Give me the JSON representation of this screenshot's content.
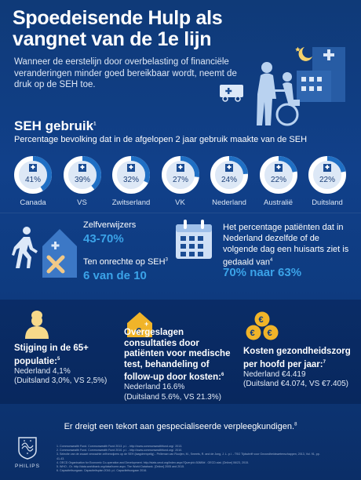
{
  "header": {
    "title": "Spoedeisende Hulp als vangnet van de 1e lijn",
    "intro": "Wanneer de eerstelijn door overbelasting of financiële veranderingen minder goed bereikbaar wordt, neemt de druk op de SEH toe."
  },
  "seh": {
    "title": "SEH gebruik",
    "sup": "1",
    "subtitle": "Percentage bevolking dat in de afgelopen 2 jaar gebruik maakte van de SEH",
    "countries": [
      {
        "name": "Canada",
        "label": "41%",
        "value": 41
      },
      {
        "name": "VS",
        "label": "39%",
        "value": 39
      },
      {
        "name": "Zwitserland",
        "label": "32%",
        "value": 32
      },
      {
        "name": "VK",
        "label": "27%",
        "value": 27
      },
      {
        "name": "Nederland",
        "label": "24%",
        "value": 24
      },
      {
        "name": "Australië",
        "label": "22%",
        "value": 22
      },
      {
        "name": "Duitsland",
        "label": "22%",
        "value": 22
      }
    ]
  },
  "stats": {
    "zelf_label": "Zelfverwijzers",
    "zelf_value": "43-70%",
    "onrechte_label": "Ten onrechte op SEH",
    "onrechte_sup": "3",
    "onrechte_value": "6 van de 10",
    "pct_text": "Het percentage patiënten dat in Nederland dezelfde of de volgende dag een huisarts ziet is gedaald van",
    "pct_sup": "4",
    "pct_value": "70% naar 63%"
  },
  "columns": [
    {
      "title": "Stijging in de 65+ populatie:",
      "sup": "5",
      "line1": "Nederland 4,1%",
      "line2": "(Duitsland 3,0%, VS 2,5%)"
    },
    {
      "title": "Overgeslagen consultaties door patiënten voor medische test, behandeling of follow-up door kosten:",
      "sup": "6",
      "line1": "Nederland 16.6%",
      "line2": "(Duitsland 5.6%, VS 21.3%)"
    },
    {
      "title": "Kosten gezondheidszorg per hoofd per jaar:",
      "sup": "7",
      "line1": "Nederland €4.419",
      "line2": "(Duitsland €4.074, VS €7.405)"
    }
  ],
  "footer": {
    "statement": "Er dreigt een tekort aan gespecialiseerde verpleegkundigen.",
    "statement_sup": "8",
    "brand": "PHILIPS",
    "footnotes": [
      "1. Commonwealth Fund. Commonwealth Fund 2013. p.l. - http://www.commonwealthfund.org/. 2013.",
      "2. Commonwealth Fund. Commonwealth Fund 2010. p.l. - http://www.commonwealthfund.org/. 2010.",
      "3. Selectie van de zwaart verwachte zelfverwijzers op de SEH (laagdrempelig) - Pelleman van Rooijen, M., Smeets, R. and de Jong, J. L. p.l. - TSG Tijdschrift voor Gezondheidswetenschappen, 2013, Vol. 91, pp. 41-43.",
      "4. OECD Organisation for Economic Co-operation and Development. http://stats.oecd.org/Index.aspx?QueryId=30889# . OECD.stat. [Online] 06/23, 2015.",
      "5. WHO - Gr. http://data.worldbank.org/data/home.aspx. The World Databank. [Online] 2005 and 2015.",
      "6. Capaciteitsorgaan. Capaciteitsplan 2016. p.l. Capaciteitsorgaan 2016."
    ]
  },
  "colors": {
    "accent": "#3ba3e8",
    "ring_bg": "#ffffff",
    "ring_fill": "#1f6fc4",
    "icon_light": "#cfe0f6",
    "x_mark": "#f2c987",
    "coin": "#f0b429"
  }
}
